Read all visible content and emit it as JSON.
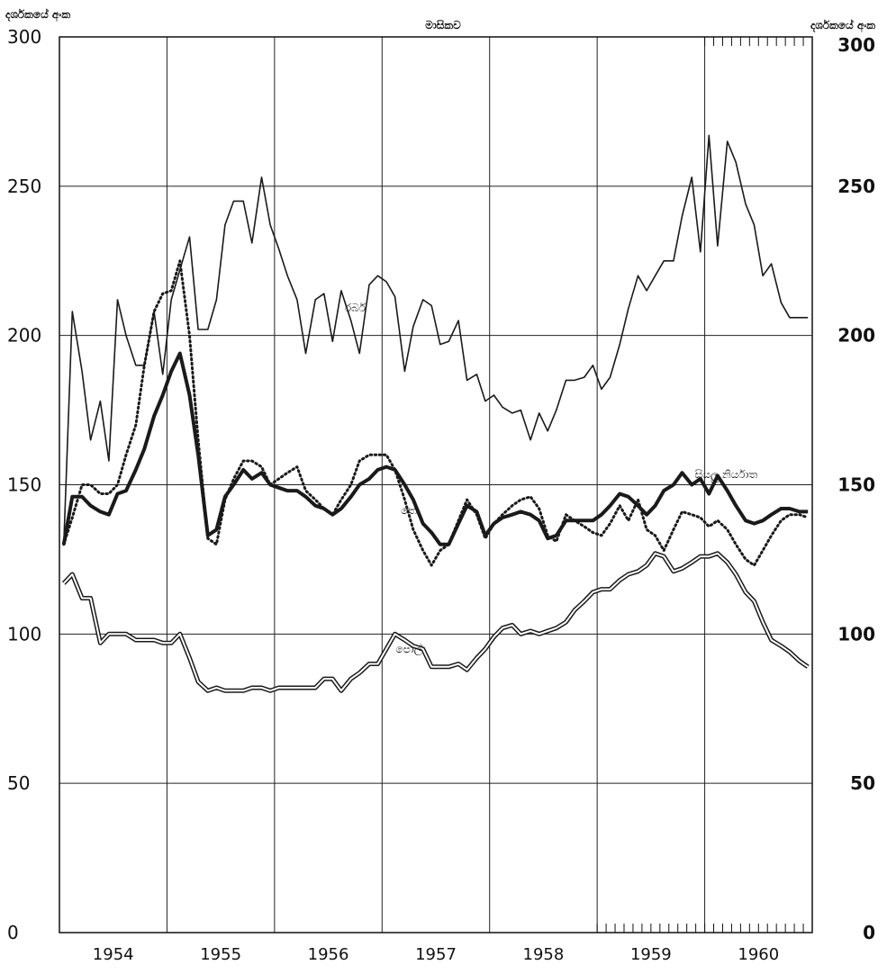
{
  "chart_data": {
    "type": "line",
    "title": "මාසිකව",
    "ylabel_left": "දර්ශකයේ අංක",
    "ylabel_right": "දර්ශකයේ අංක",
    "ylim": [
      0,
      300
    ],
    "yticks": [
      0,
      50,
      100,
      150,
      200,
      250,
      300
    ],
    "ytick_labels_left": [
      "0",
      "50",
      "100",
      "150",
      "200",
      "250",
      "300"
    ],
    "ytick_labels_right": [
      "0",
      "50",
      "100",
      "150",
      "200",
      "250",
      "300"
    ],
    "xlim": [
      1954.0,
      1961.0
    ],
    "xtick_labels": [
      "1954",
      "1955",
      "1956",
      "1957",
      "1958",
      "1959",
      "1960"
    ],
    "grid": true,
    "series": [
      {
        "name": "රබර්",
        "style": "solid-thin",
        "x": [
          1954.04,
          1954.12,
          1954.21,
          1954.29,
          1954.38,
          1954.46,
          1954.54,
          1954.62,
          1954.71,
          1954.79,
          1954.88,
          1954.96,
          1955.04,
          1955.12,
          1955.21,
          1955.29,
          1955.38,
          1955.46,
          1955.54,
          1955.62,
          1955.71,
          1955.79,
          1955.88,
          1955.96,
          1956.04,
          1956.12,
          1956.21,
          1956.29,
          1956.38,
          1956.46,
          1956.54,
          1956.62,
          1956.71,
          1956.79,
          1956.88,
          1956.96,
          1957.04,
          1957.12,
          1957.21,
          1957.29,
          1957.38,
          1957.46,
          1957.54,
          1957.62,
          1957.71,
          1957.79,
          1957.88,
          1957.96,
          1958.04,
          1958.12,
          1958.21,
          1958.29,
          1958.38,
          1958.46,
          1958.54,
          1958.62,
          1958.71,
          1958.79,
          1958.88,
          1958.96,
          1959.04,
          1959.12,
          1959.21,
          1959.29,
          1959.38,
          1959.46,
          1959.54,
          1959.62,
          1959.71,
          1959.79,
          1959.88,
          1959.96,
          1960.04,
          1960.12,
          1960.21,
          1960.29,
          1960.38,
          1960.46,
          1960.54,
          1960.62,
          1960.71,
          1960.79,
          1960.88,
          1960.96
        ],
        "values": [
          130,
          208,
          188,
          165,
          178,
          158,
          212,
          200,
          190,
          190,
          208,
          187,
          212,
          222,
          233,
          202,
          202,
          212,
          237,
          245,
          245,
          231,
          253,
          237,
          229,
          220,
          212,
          194,
          212,
          214,
          198,
          215,
          205,
          194,
          217,
          220,
          218,
          213,
          188,
          203,
          212,
          210,
          197,
          198,
          205,
          185,
          187,
          178,
          180,
          176,
          174,
          175,
          165,
          174,
          168,
          175,
          185,
          185,
          186,
          190,
          182,
          186,
          197,
          209,
          220,
          215,
          220,
          225,
          225,
          240,
          253,
          228,
          267,
          230,
          265,
          258,
          244,
          237,
          220,
          224,
          211,
          206,
          206,
          206
        ],
        "color": "#1a1a1a"
      },
      {
        "name": "සියලු නිර්යාත",
        "style": "solid-thick",
        "x": [
          1954.04,
          1954.12,
          1954.21,
          1954.29,
          1954.38,
          1954.46,
          1954.54,
          1954.62,
          1954.71,
          1954.79,
          1954.88,
          1954.96,
          1955.04,
          1955.12,
          1955.21,
          1955.29,
          1955.38,
          1955.46,
          1955.54,
          1955.62,
          1955.71,
          1955.79,
          1955.88,
          1955.96,
          1956.04,
          1956.12,
          1956.21,
          1956.29,
          1956.38,
          1956.46,
          1956.54,
          1956.62,
          1956.71,
          1956.79,
          1956.88,
          1956.96,
          1957.04,
          1957.12,
          1957.21,
          1957.29,
          1957.38,
          1957.46,
          1957.54,
          1957.62,
          1957.71,
          1957.79,
          1957.88,
          1957.96,
          1958.04,
          1958.12,
          1958.21,
          1958.29,
          1958.38,
          1958.46,
          1958.54,
          1958.62,
          1958.71,
          1958.79,
          1958.88,
          1958.96,
          1959.04,
          1959.12,
          1959.21,
          1959.29,
          1959.38,
          1959.46,
          1959.54,
          1959.62,
          1959.71,
          1959.79,
          1959.88,
          1959.96,
          1960.04,
          1960.12,
          1960.21,
          1960.29,
          1960.38,
          1960.46,
          1960.54,
          1960.62,
          1960.71,
          1960.79,
          1960.88,
          1960.96
        ],
        "values": [
          130,
          146,
          146,
          143,
          141,
          140,
          147,
          148,
          155,
          162,
          173,
          180,
          188,
          194,
          180,
          160,
          133,
          135,
          146,
          150,
          155,
          152,
          154,
          150,
          149,
          148,
          148,
          146,
          143,
          142,
          140,
          142,
          146,
          150,
          152,
          155,
          156,
          155,
          150,
          145,
          137,
          134,
          130,
          130,
          137,
          143,
          141,
          133,
          137,
          139,
          140,
          141,
          140,
          138,
          132,
          133,
          138,
          138,
          138,
          138,
          140,
          143,
          147,
          146,
          143,
          140,
          143,
          148,
          150,
          154,
          150,
          152,
          147,
          153,
          148,
          143,
          138,
          137,
          138,
          140,
          142,
          142,
          141,
          141
        ],
        "color": "#1a1a1a"
      },
      {
        "name": "තේ",
        "style": "dotted",
        "x": [
          1954.04,
          1954.12,
          1954.21,
          1954.29,
          1954.38,
          1954.46,
          1954.54,
          1954.62,
          1954.71,
          1954.79,
          1954.88,
          1954.96,
          1955.04,
          1955.12,
          1955.21,
          1955.29,
          1955.38,
          1955.46,
          1955.54,
          1955.62,
          1955.71,
          1955.79,
          1955.88,
          1955.96,
          1956.04,
          1956.12,
          1956.21,
          1956.29,
          1956.38,
          1956.46,
          1956.54,
          1956.62,
          1956.71,
          1956.79,
          1956.88,
          1956.96,
          1957.04,
          1957.12,
          1957.21,
          1957.29,
          1957.38,
          1957.46,
          1957.54,
          1957.62,
          1957.71,
          1957.79,
          1957.88,
          1957.96,
          1958.04,
          1958.12,
          1958.21,
          1958.29,
          1958.38,
          1958.46,
          1958.54,
          1958.62,
          1958.71,
          1958.79,
          1958.88,
          1958.96,
          1959.04,
          1959.12,
          1959.21,
          1959.29,
          1959.38,
          1959.46,
          1959.54,
          1959.62,
          1959.71,
          1959.79,
          1959.88,
          1959.96,
          1960.04,
          1960.12,
          1960.21,
          1960.29,
          1960.38,
          1960.46,
          1960.54,
          1960.62,
          1960.71,
          1960.79,
          1960.88,
          1960.96
        ],
        "values": [
          130,
          139,
          150,
          150,
          147,
          147,
          150,
          160,
          170,
          190,
          208,
          214,
          215,
          225,
          200,
          165,
          132,
          130,
          145,
          152,
          158,
          158,
          156,
          150,
          152,
          154,
          156,
          148,
          145,
          142,
          140,
          145,
          150,
          158,
          160,
          160,
          160,
          155,
          145,
          135,
          128,
          123,
          128,
          130,
          138,
          145,
          140,
          132,
          137,
          140,
          143,
          145,
          146,
          142,
          133,
          131,
          140,
          138,
          136,
          134,
          133,
          137,
          143,
          138,
          145,
          135,
          133,
          128,
          135,
          141,
          140,
          139,
          136,
          138,
          135,
          130,
          125,
          123,
          128,
          133,
          138,
          140,
          140,
          139
        ],
        "color": "#1a1a1a"
      },
      {
        "name": "පොල්",
        "style": "double",
        "x": [
          1954.04,
          1954.12,
          1954.21,
          1954.29,
          1954.38,
          1954.46,
          1954.54,
          1954.62,
          1954.71,
          1954.79,
          1954.88,
          1954.96,
          1955.04,
          1955.12,
          1955.21,
          1955.29,
          1955.38,
          1955.46,
          1955.54,
          1955.62,
          1955.71,
          1955.79,
          1955.88,
          1955.96,
          1956.04,
          1956.12,
          1956.21,
          1956.29,
          1956.38,
          1956.46,
          1956.54,
          1956.62,
          1956.71,
          1956.79,
          1956.88,
          1956.96,
          1957.04,
          1957.12,
          1957.21,
          1957.29,
          1957.38,
          1957.46,
          1957.54,
          1957.62,
          1957.71,
          1957.79,
          1957.88,
          1957.96,
          1958.04,
          1958.12,
          1958.21,
          1958.29,
          1958.38,
          1958.46,
          1958.54,
          1958.62,
          1958.71,
          1958.79,
          1958.88,
          1958.96,
          1959.04,
          1959.12,
          1959.21,
          1959.29,
          1959.38,
          1959.46,
          1959.54,
          1959.62,
          1959.71,
          1959.79,
          1959.88,
          1959.96,
          1960.04,
          1960.12,
          1960.21,
          1960.29,
          1960.38,
          1960.46,
          1960.54,
          1960.62,
          1960.71,
          1960.79,
          1960.88,
          1960.96
        ],
        "values": [
          117,
          120,
          112,
          112,
          97,
          100,
          100,
          100,
          98,
          98,
          98,
          97,
          97,
          100,
          92,
          84,
          81,
          82,
          81,
          81,
          81,
          82,
          82,
          81,
          82,
          82,
          82,
          82,
          82,
          85,
          85,
          81,
          85,
          87,
          90,
          90,
          95,
          100,
          98,
          96,
          95,
          89,
          89,
          89,
          90,
          88,
          92,
          95,
          99,
          102,
          103,
          100,
          101,
          100,
          101,
          102,
          104,
          108,
          111,
          114,
          115,
          115,
          118,
          120,
          121,
          123,
          127,
          126,
          121,
          122,
          124,
          126,
          126,
          127,
          124,
          120,
          114,
          111,
          104,
          98,
          96,
          94,
          91,
          89
        ],
        "color": "#1a1a1a"
      }
    ],
    "annotations": [
      {
        "label": "රබර්",
        "series": 0
      },
      {
        "label": "සියලු නිර්යාත",
        "series": 1
      },
      {
        "label": "තේ",
        "series": 2
      },
      {
        "label": "පොල්",
        "series": 3
      }
    ]
  }
}
